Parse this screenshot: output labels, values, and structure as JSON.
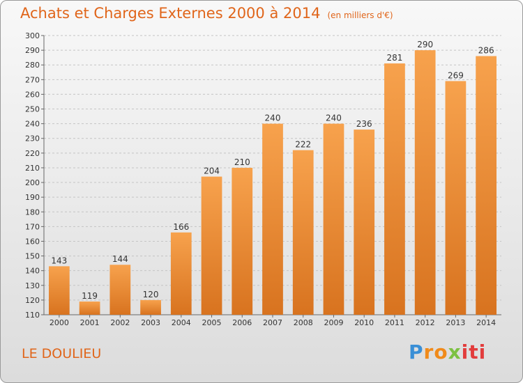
{
  "header": {
    "title": "Achats et Charges Externes 2000 à 2014",
    "unit": "(en milliers d'€)"
  },
  "commune": "LE DOULIEU",
  "logo": {
    "text": "Proxiti",
    "colors": [
      "#3a8fd6",
      "#f08a1a",
      "#7cc142",
      "#e23c3c"
    ]
  },
  "colors": {
    "bar_light": "#f7a24d",
    "bar_dark": "#d8731f",
    "title": "#e0651a"
  },
  "chart_data": {
    "type": "bar",
    "title": "Achats et Charges Externes 2000 à 2014",
    "subtitle": "(en milliers d'€)",
    "categories": [
      "2000",
      "2001",
      "2002",
      "2003",
      "2004",
      "2005",
      "2006",
      "2007",
      "2008",
      "2009",
      "2010",
      "2011",
      "2012",
      "2013",
      "2014"
    ],
    "values": [
      143,
      119,
      144,
      120,
      166,
      204,
      210,
      240,
      222,
      240,
      236,
      281,
      290,
      269,
      286
    ],
    "ylim": [
      110,
      300
    ],
    "yticks": [
      110,
      120,
      130,
      140,
      150,
      160,
      170,
      180,
      190,
      200,
      210,
      220,
      230,
      240,
      250,
      260,
      270,
      280,
      290,
      300
    ],
    "grid": true,
    "data_labels": true
  }
}
